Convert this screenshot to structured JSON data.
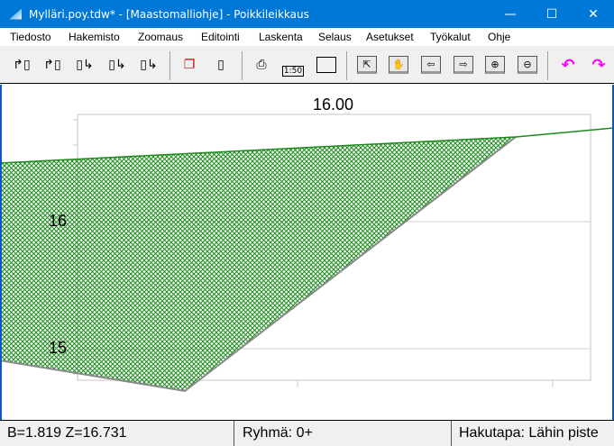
{
  "window": {
    "title": "Mylläri.poy.tdw* - [Maastomalliohje] - Poikkileikkaus",
    "buttons": [
      "minimize",
      "maximize",
      "close"
    ]
  },
  "menu": [
    "Tiedosto",
    "Hakemisto",
    "Zoomaus",
    "Editointi",
    "Laskenta",
    "Selaus",
    "Asetukset",
    "Työkalut",
    "Ohje"
  ],
  "toolbar": {
    "icons": [
      "open-icon",
      "open-from-icon",
      "save-to-icon",
      "save-copy-icon",
      "save-icon",
      "copy-icon",
      "delete-page-icon",
      "print-icon",
      "scale-icon",
      "page-setup-icon",
      "zoom-fit-icon",
      "pan-icon",
      "previous-icon",
      "next-icon",
      "zoom-in-icon",
      "zoom-out-icon",
      "undo-icon",
      "redo-icon"
    ],
    "scale_label": "1:50",
    "undo_color": "#ff00ff"
  },
  "drawing": {
    "station_label": "16.00",
    "y_labels": [
      "16",
      "15"
    ],
    "fill_color": "#1a8a1a",
    "line_color": "#1a8a1a"
  },
  "status": {
    "coords": "B=1.819  Z=16.731",
    "group": "Ryhmä: 0+",
    "search": "Hakutapa: Lähin piste"
  }
}
